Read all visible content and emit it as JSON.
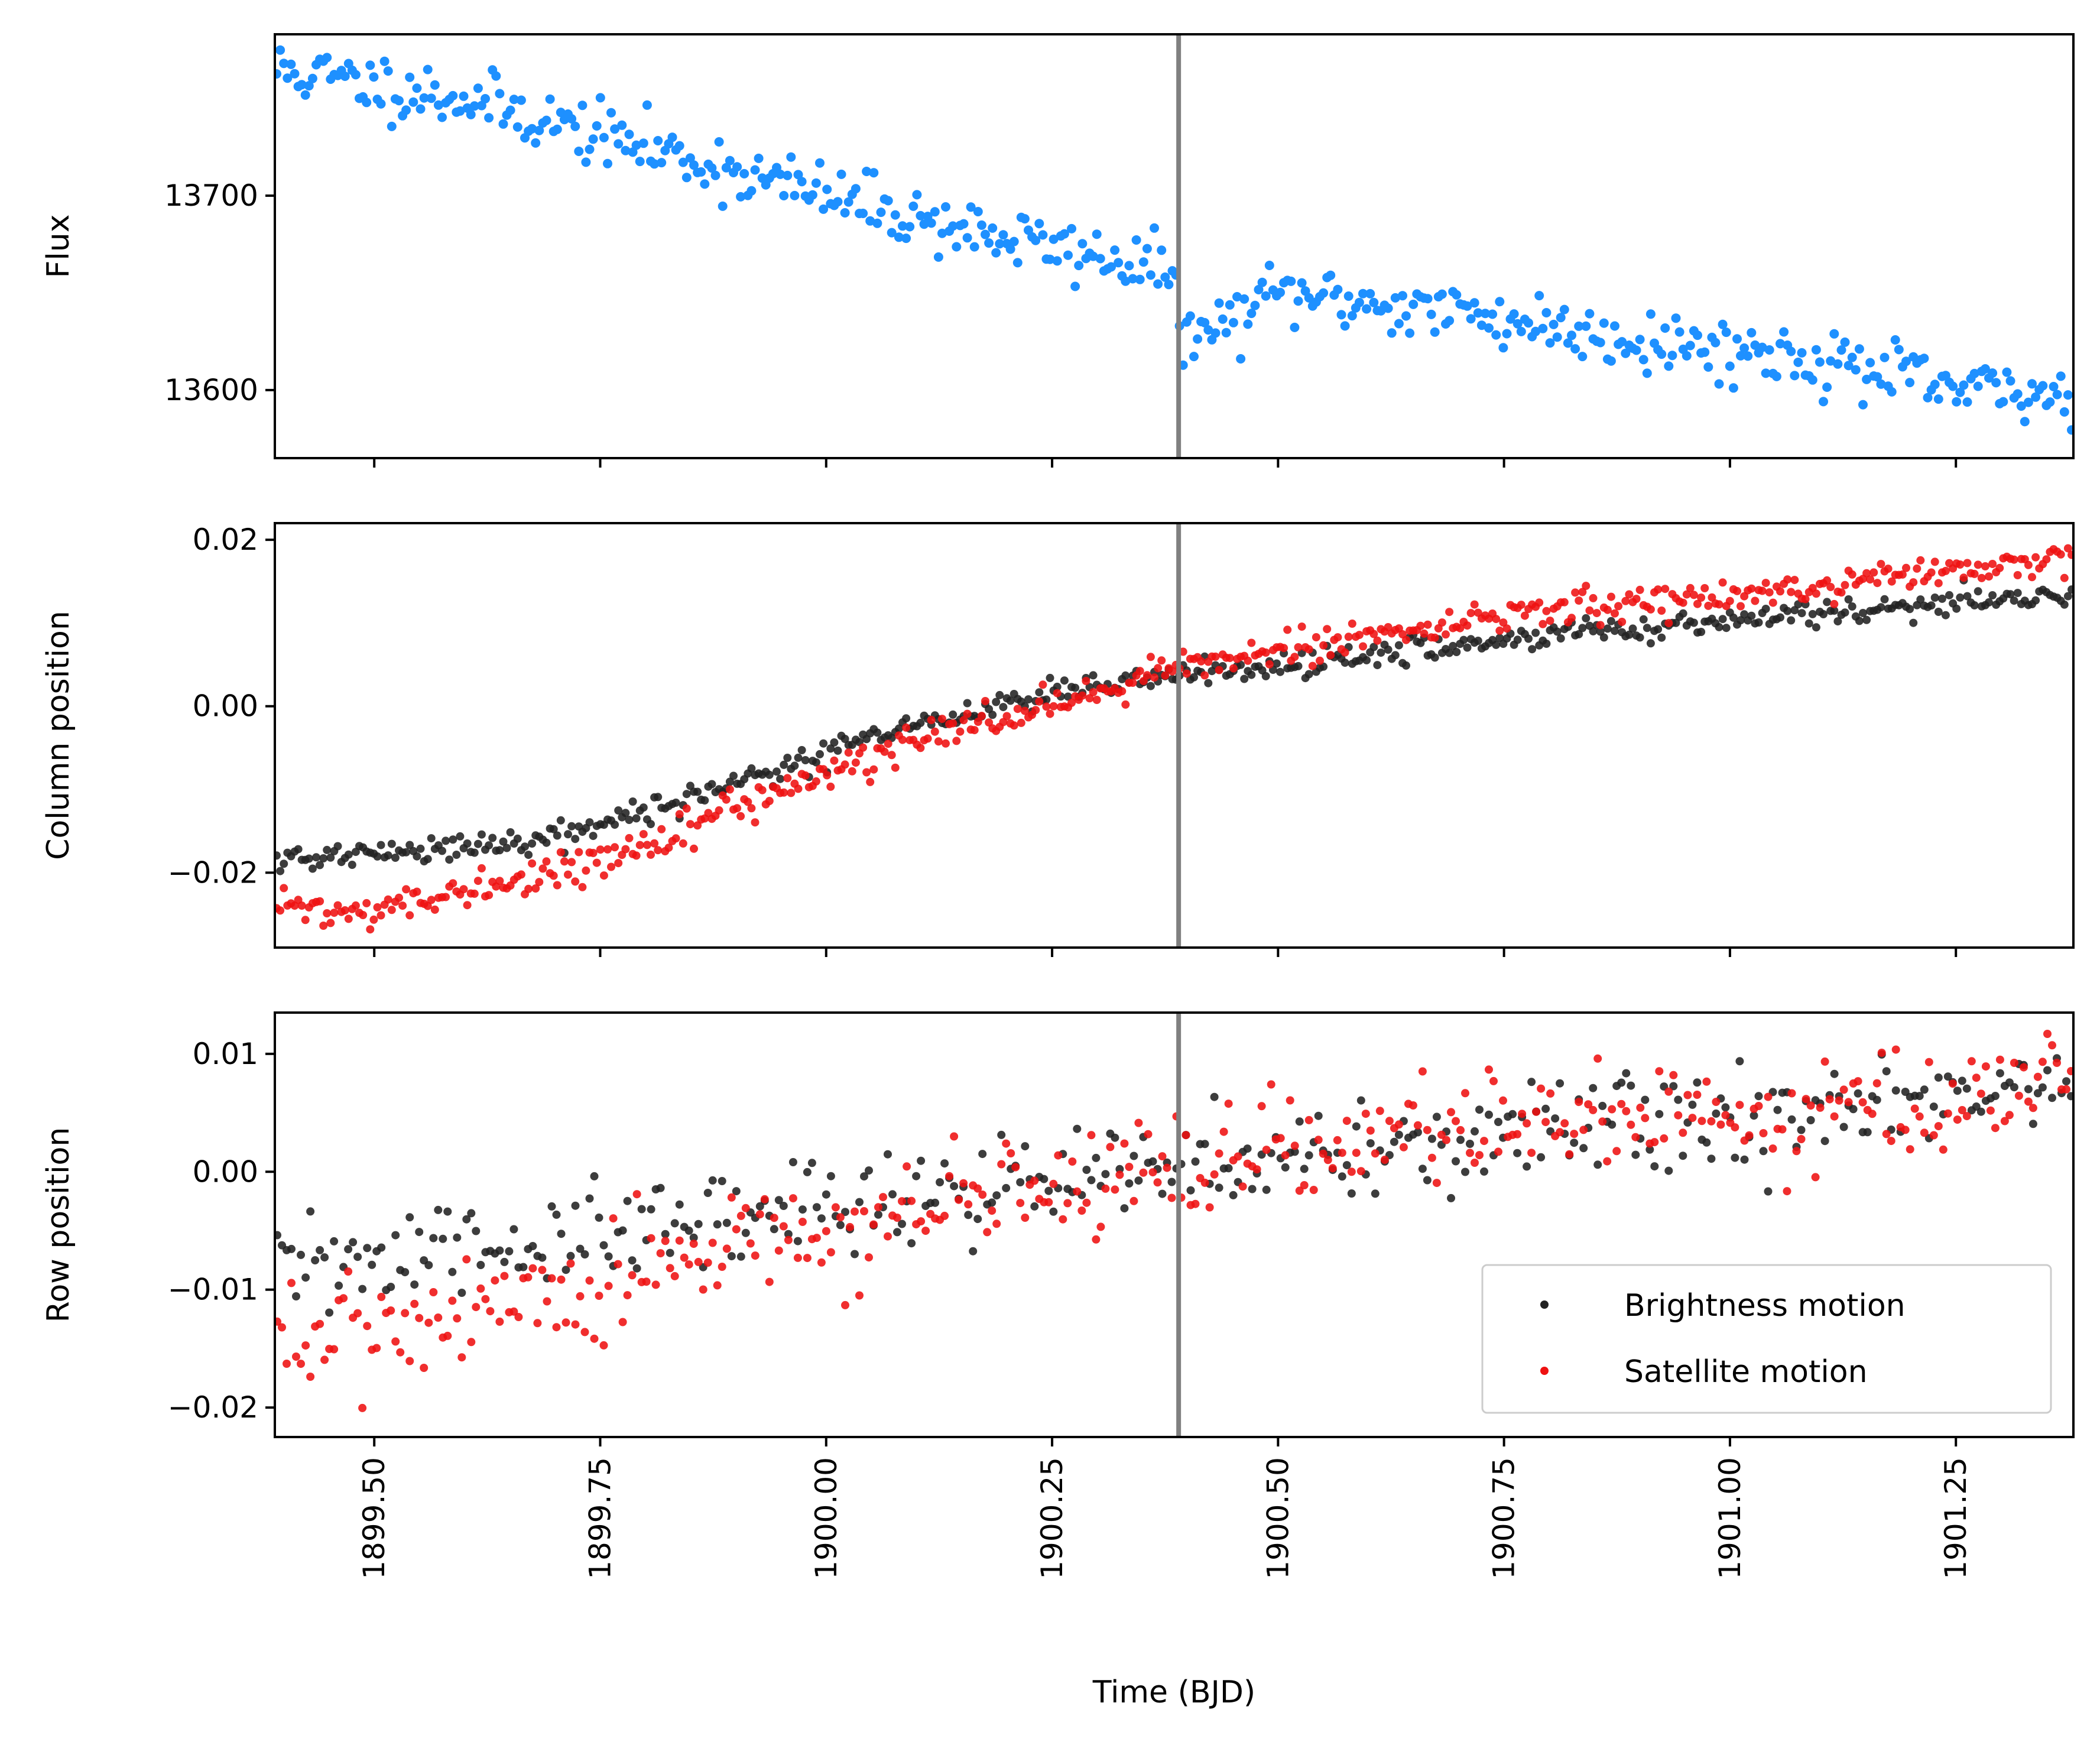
{
  "chart_data": [
    {
      "type": "scatter",
      "panel": "flux",
      "ylabel": "Flux",
      "xlim": [
        1899.39,
        1901.38
      ],
      "ylim": [
        13565,
        13783
      ],
      "x_ticks": [
        1899.5,
        1899.75,
        1900.0,
        1900.25,
        1900.5,
        1900.75,
        1901.0,
        1901.25
      ],
      "y_ticks": [
        13600,
        13700
      ],
      "y_tick_labels": [
        "13600",
        "13700"
      ],
      "vline": 1900.39,
      "trend": {
        "x": [
          1899.39,
          1899.6,
          1899.8,
          1900.0,
          1900.2,
          1900.38,
          1900.39,
          1900.42,
          1900.5,
          1900.7,
          1900.9,
          1901.1,
          1901.25,
          1901.38
        ],
        "y": [
          13765,
          13750,
          13725,
          13700,
          13678,
          13662,
          13632,
          13628,
          13650,
          13640,
          13626,
          13616,
          13600,
          13597
        ]
      },
      "noise": 8,
      "series": [
        {
          "color": "#1e90ff",
          "n": 500,
          "seed": 11
        }
      ]
    },
    {
      "type": "scatter",
      "panel": "column",
      "ylabel": "Column position",
      "xlim": [
        1899.39,
        1901.38
      ],
      "ylim": [
        -0.029,
        0.022
      ],
      "x_ticks": [
        1899.5,
        1899.75,
        1900.0,
        1900.25,
        1900.5,
        1900.75,
        1901.0,
        1901.25
      ],
      "y_ticks": [
        -0.02,
        0.0,
        0.02
      ],
      "y_tick_labels": [
        "−0.02",
        "0.00",
        "0.02"
      ],
      "vline": 1900.39,
      "series": [
        {
          "name": "Brightness motion",
          "color": "#222222",
          "n": 500,
          "seed": 21,
          "noise": 0.0008,
          "trend": {
            "x": [
              1899.39,
              1899.6,
              1899.75,
              1900.0,
              1900.2,
              1900.4,
              1900.6,
              1900.8,
              1901.0,
              1901.2,
              1901.38
            ],
            "y": [
              -0.0185,
              -0.017,
              -0.0145,
              -0.0055,
              0.0005,
              0.004,
              0.006,
              0.0085,
              0.0105,
              0.012,
              0.0135
            ]
          }
        },
        {
          "name": "Satellite motion",
          "color": "#ee1111",
          "n": 500,
          "seed": 22,
          "noise": 0.001,
          "trend": {
            "x": [
              1899.39,
              1899.5,
              1899.6,
              1899.75,
              1900.0,
              1900.2,
              1900.4,
              1900.6,
              1900.8,
              1901.0,
              1901.2,
              1901.38
            ],
            "y": [
              -0.024,
              -0.025,
              -0.0225,
              -0.0185,
              -0.008,
              -0.001,
              0.005,
              0.0085,
              0.0115,
              0.0135,
              0.0155,
              0.0175
            ]
          }
        }
      ]
    },
    {
      "type": "scatter",
      "panel": "row",
      "ylabel": "Row position",
      "xlabel": "Time (BJD)",
      "xlim": [
        1899.39,
        1901.38
      ],
      "ylim": [
        -0.0225,
        0.0135
      ],
      "x_ticks": [
        1899.5,
        1899.75,
        1900.0,
        1900.25,
        1900.5,
        1900.75,
        1901.0,
        1901.25
      ],
      "x_tick_labels": [
        "1899.50",
        "1899.75",
        "1900.00",
        "1900.25",
        "1900.50",
        "1900.75",
        "1901.00",
        "1901.25"
      ],
      "y_ticks": [
        -0.02,
        -0.01,
        0.0,
        0.01
      ],
      "y_tick_labels": [
        "−0.02",
        "−0.01",
        "0.00",
        "0.01"
      ],
      "vline": 1900.39,
      "legend": {
        "placement": "lower-right",
        "entries": [
          "Brightness motion",
          "Satellite motion"
        ]
      },
      "series": [
        {
          "name": "Brightness motion",
          "color": "#222222",
          "n": 380,
          "seed": 31,
          "noise": 0.0022,
          "trend": {
            "x": [
              1899.39,
              1899.6,
              1899.8,
              1900.0,
              1900.2,
              1900.4,
              1900.6,
              1900.8,
              1901.0,
              1901.2,
              1901.38
            ],
            "y": [
              -0.0085,
              -0.0065,
              -0.0055,
              -0.0025,
              -0.001,
              0.0,
              0.002,
              0.0035,
              0.0045,
              0.0055,
              0.0065
            ]
          }
        },
        {
          "name": "Satellite motion",
          "color": "#ee1111",
          "n": 380,
          "seed": 32,
          "noise": 0.0025,
          "trend": {
            "x": [
              1899.39,
              1899.6,
              1899.8,
              1900.0,
              1900.2,
              1900.4,
              1900.6,
              1900.8,
              1901.0,
              1901.2,
              1901.38
            ],
            "y": [
              -0.0145,
              -0.0115,
              -0.0085,
              -0.005,
              -0.002,
              0.0,
              0.0025,
              0.0035,
              0.005,
              0.006,
              0.0075
            ]
          }
        }
      ]
    }
  ]
}
